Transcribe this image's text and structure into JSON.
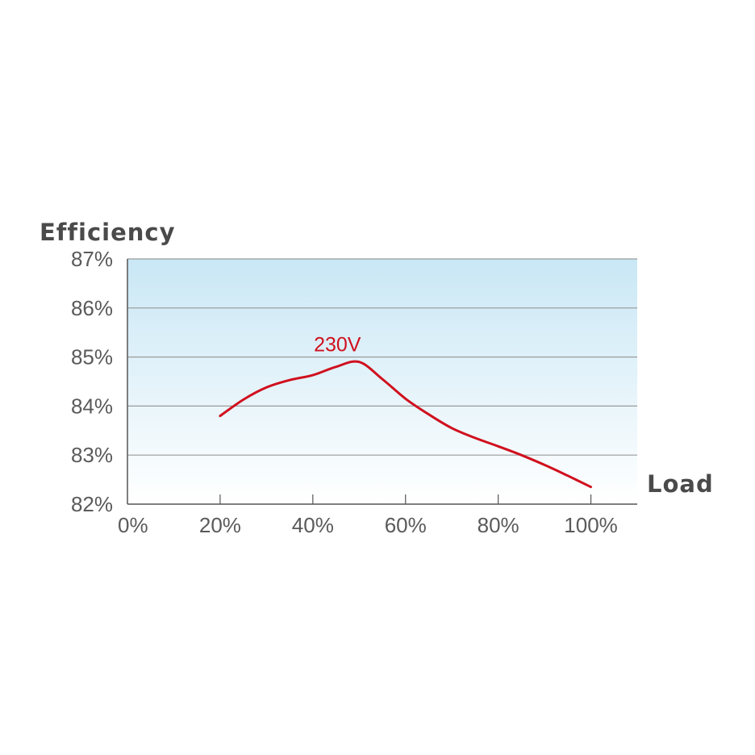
{
  "chart_data": {
    "type": "line",
    "ylabel": "Efficiency",
    "xlabel": "Load",
    "ylim": [
      82,
      87
    ],
    "xlim": [
      0,
      110
    ],
    "y_ticks": [
      {
        "value": 82,
        "label": "82%"
      },
      {
        "value": 83,
        "label": "83%"
      },
      {
        "value": 84,
        "label": "84%"
      },
      {
        "value": 85,
        "label": "85%"
      },
      {
        "value": 86,
        "label": "86%"
      },
      {
        "value": 87,
        "label": "87%"
      }
    ],
    "x_ticks": [
      {
        "value": 0,
        "label": "0%"
      },
      {
        "value": 20,
        "label": "20%"
      },
      {
        "value": 40,
        "label": "40%"
      },
      {
        "value": 60,
        "label": "60%"
      },
      {
        "value": 80,
        "label": "80%"
      },
      {
        "value": 100,
        "label": "100%"
      }
    ],
    "grid": "horizontal",
    "series": [
      {
        "name": "230V",
        "color": "#d0101e",
        "x": [
          20,
          25,
          30,
          35,
          40,
          45,
          50,
          55,
          60,
          65,
          70,
          75,
          80,
          85,
          90,
          95,
          100
        ],
        "y": [
          83.8,
          84.13,
          84.38,
          84.53,
          84.63,
          84.8,
          84.9,
          84.55,
          84.15,
          83.83,
          83.55,
          83.35,
          83.18,
          83.0,
          82.8,
          82.58,
          82.35
        ]
      }
    ],
    "colors": {
      "background_top": "#c9e7f5",
      "background_bottom": "#ffffff",
      "gridline": "#9a9a9a",
      "axis": "#555555"
    }
  }
}
